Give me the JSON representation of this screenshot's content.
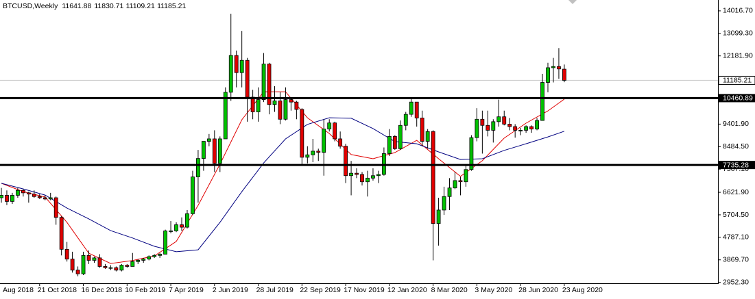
{
  "chart_data": {
    "type": "candlestick",
    "title": "BTCUSD,Weekly",
    "categories": [
      "Aug 2018",
      null,
      null,
      null,
      null,
      null,
      null,
      "21 Oct 2018",
      null,
      null,
      null,
      null,
      null,
      null,
      null,
      "16 Dec 2018",
      null,
      null,
      null,
      null,
      null,
      null,
      null,
      "10 Feb 2019",
      null,
      null,
      null,
      null,
      null,
      null,
      null,
      "7 Apr 2019",
      null,
      null,
      null,
      null,
      null,
      null,
      null,
      "2 Jun 2019",
      null,
      null,
      null,
      null,
      null,
      null,
      null,
      "28 Jul 2019",
      null,
      null,
      null,
      null,
      null,
      null,
      null,
      "22 Sep 2019",
      null,
      null,
      null,
      null,
      null,
      null,
      null,
      "17 Nov 2019",
      null,
      null,
      null,
      null,
      null,
      null,
      null,
      "12 Jan 2020",
      null,
      null,
      null,
      null,
      null,
      null,
      null,
      "8 Mar 2020",
      null,
      null,
      null,
      null,
      null,
      null,
      null,
      "3 May 2020",
      null,
      null,
      null,
      null,
      null,
      null,
      null,
      "28 Jun 2020",
      null,
      null,
      null,
      null,
      null,
      null,
      null,
      "23 Aug 2020"
    ],
    "open": [
      6400,
      6500,
      6250,
      6500,
      6700,
      6600,
      6550,
      6450,
      6400,
      6350,
      6400,
      5600,
      4300,
      3900,
      3450,
      3300,
      4050,
      3850,
      3950,
      3600,
      3550,
      3550,
      3450,
      3650,
      3600,
      3800,
      3850,
      3900,
      4000,
      4050,
      4100,
      5050,
      5050,
      5300,
      5200,
      5750,
      7250,
      8000,
      8700,
      8800,
      7800,
      8800,
      10700,
      12200,
      11500,
      12000,
      10500,
      9900,
      10400,
      11850,
      10200,
      10350,
      9600,
      10400,
      10300,
      10000,
      8050,
      8150,
      8300,
      8250,
      9200,
      9450,
      8800,
      8500,
      7300,
      7400,
      7350,
      7050,
      7200,
      7300,
      7350,
      8200,
      8900,
      8400,
      9350,
      9800,
      10300,
      9650,
      8700,
      9100,
      5350,
      5900,
      6450,
      6800,
      7100,
      7050,
      7550,
      8850,
      9600,
      9350,
      9150,
      9500,
      9700,
      9400,
      9300,
      9150,
      9150,
      9300,
      9200,
      9550,
      11100,
      11700,
      11750,
      11641.88
    ],
    "high": [
      6800,
      6700,
      6600,
      6800,
      6750,
      6650,
      6700,
      6550,
      6500,
      6600,
      6450,
      5650,
      4600,
      4200,
      3600,
      4200,
      4250,
      4000,
      4100,
      3700,
      3650,
      3600,
      3700,
      3700,
      4150,
      3900,
      3950,
      4050,
      4100,
      4150,
      5100,
      5450,
      5400,
      5600,
      5900,
      7500,
      8350,
      8700,
      9000,
      9150,
      8900,
      10900,
      13900,
      12400,
      13200,
      12100,
      10800,
      10900,
      12300,
      11900,
      10950,
      10700,
      10900,
      10450,
      10350,
      10050,
      8500,
      8800,
      8400,
      9600,
      9600,
      9500,
      9100,
      8600,
      7900,
      7600,
      7450,
      7500,
      7600,
      7500,
      8450,
      9200,
      8950,
      9550,
      9900,
      10500,
      10300,
      9950,
      9200,
      9150,
      6400,
      6850,
      7200,
      7450,
      7250,
      7700,
      8950,
      10050,
      9950,
      9950,
      9600,
      10400,
      9950,
      9650,
      9400,
      9250,
      9350,
      9350,
      9650,
      11450,
      11900,
      12100,
      12500,
      11830.71
    ],
    "low": [
      6200,
      6100,
      6150,
      6400,
      6450,
      6200,
      6400,
      6350,
      6300,
      6300,
      5300,
      4050,
      3800,
      3350,
      3200,
      3250,
      3700,
      3750,
      3550,
      3500,
      3450,
      3400,
      3400,
      3550,
      3600,
      3700,
      3750,
      3850,
      3950,
      3950,
      4100,
      4950,
      5000,
      5050,
      5150,
      5700,
      6200,
      7500,
      8500,
      7450,
      7450,
      8800,
      10350,
      10900,
      10900,
      9500,
      9600,
      9500,
      10300,
      9800,
      9900,
      9400,
      9550,
      9950,
      9600,
      7700,
      7800,
      7850,
      7900,
      7300,
      9100,
      8700,
      8400,
      7000,
      6500,
      7200,
      6900,
      6450,
      7100,
      7000,
      7300,
      8100,
      8350,
      8350,
      9150,
      9700,
      9300,
      8500,
      8400,
      3850,
      4450,
      5700,
      5900,
      6750,
      6500,
      6850,
      7500,
      8700,
      8200,
      8900,
      8650,
      9300,
      9350,
      9150,
      8850,
      8950,
      9050,
      9050,
      9150,
      9550,
      10700,
      11100,
      11250,
      11109.21
    ],
    "close": [
      6500,
      6250,
      6500,
      6700,
      6600,
      6550,
      6450,
      6400,
      6350,
      6400,
      5600,
      4300,
      3900,
      3450,
      3300,
      4050,
      3850,
      3950,
      3600,
      3550,
      3550,
      3450,
      3650,
      3600,
      3800,
      3850,
      3900,
      4000,
      4050,
      4100,
      5050,
      5050,
      5300,
      5200,
      5750,
      7250,
      8000,
      8700,
      8800,
      7800,
      8800,
      10700,
      12200,
      11500,
      12000,
      10500,
      9900,
      10400,
      11850,
      10200,
      10350,
      9600,
      10400,
      10300,
      10000,
      8050,
      8150,
      8300,
      8250,
      9200,
      9450,
      8800,
      8500,
      7300,
      7400,
      7350,
      7050,
      7200,
      7300,
      7350,
      8200,
      8900,
      8400,
      9350,
      9800,
      10300,
      9650,
      8700,
      9100,
      5350,
      5900,
      6450,
      6800,
      7100,
      7050,
      7550,
      8850,
      9600,
      9350,
      9150,
      9500,
      9700,
      9400,
      9300,
      9150,
      9150,
      9300,
      9200,
      9550,
      11100,
      11700,
      11750,
      11650,
      11185.21
    ],
    "up_color": "#00c000",
    "down_color": "#e00000",
    "ma_series": [
      {
        "color": "#e00000",
        "x": [
          0,
          4,
          8,
          12,
          16,
          20,
          24,
          28,
          32,
          36,
          40,
          44,
          48,
          52,
          56,
          60,
          64,
          68,
          72,
          76,
          80,
          84,
          88,
          92,
          96,
          100,
          103
        ],
        "values": [
          6990,
          6650,
          6430,
          5400,
          4140,
          3720,
          3840,
          4030,
          4620,
          6090,
          7770,
          9580,
          10720,
          10720,
          9660,
          9020,
          8160,
          7990,
          8240,
          8740,
          7990,
          7270,
          7910,
          8830,
          9440,
          9940,
          10420
        ]
      },
      {
        "color": "#000080",
        "x": [
          0,
          4,
          8,
          12,
          16,
          20,
          24,
          28,
          32,
          36,
          40,
          44,
          48,
          52,
          56,
          60,
          64,
          68,
          72,
          76,
          80,
          84,
          88,
          92,
          96,
          100,
          103
        ],
        "values": [
          6990,
          6760,
          6510,
          5980,
          5540,
          5060,
          4760,
          4420,
          4200,
          4280,
          5400,
          6650,
          7820,
          8800,
          9390,
          9660,
          9640,
          9220,
          8690,
          8600,
          8270,
          7960,
          7990,
          8330,
          8600,
          8880,
          9110
        ]
      }
    ],
    "levels": [
      10460.89,
      7735.28
    ],
    "ylim": [
      2915,
      14460
    ],
    "yticks": [
      {
        "value": 14016.7,
        "label": "14016.70"
      },
      {
        "value": 13099.3,
        "label": "13099.30"
      },
      {
        "value": 12181.9,
        "label": "12181.90"
      },
      {
        "value": 9401.9,
        "label": "9401.90"
      },
      {
        "value": 8484.5,
        "label": "8484.50"
      },
      {
        "value": 7567.1,
        "label": "7567.10"
      },
      {
        "value": 6621.9,
        "label": "6621.90"
      },
      {
        "value": 5704.5,
        "label": "5704.50"
      },
      {
        "value": 4787.1,
        "label": "4787.10"
      },
      {
        "value": 3869.7,
        "label": "3869.70"
      },
      {
        "value": 2952.3,
        "label": "2952.30"
      }
    ]
  }
}
